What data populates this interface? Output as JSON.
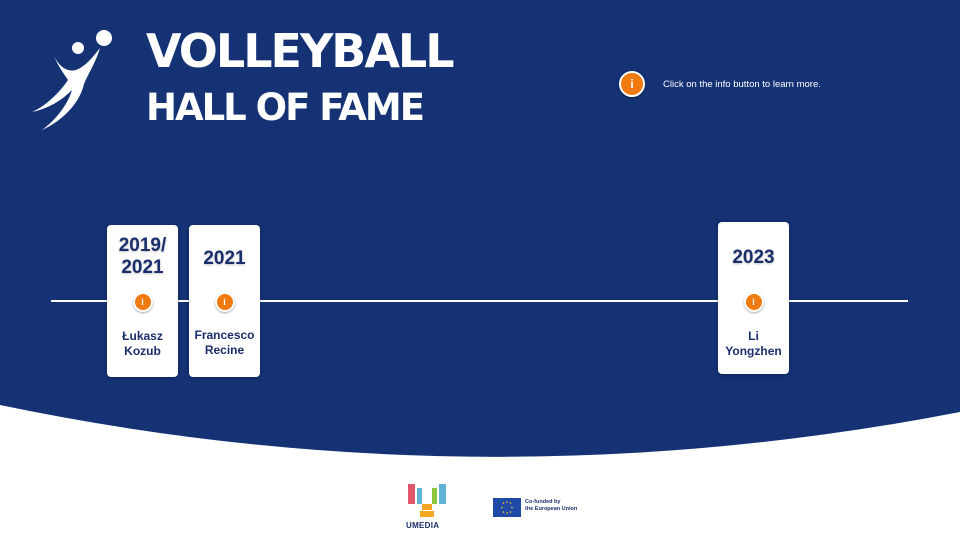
{
  "header": {
    "title_line1": "VOLLEYBALL",
    "title_line2": "HALL OF FAME",
    "logo_icon": "volleyball-player-logo"
  },
  "info_hint": {
    "button_glyph": "i",
    "text": "Click on the info button to learn more."
  },
  "timeline": {
    "cards": [
      {
        "year": "2019/\n2021",
        "name": "Łukasz\nKozub",
        "info_glyph": "i"
      },
      {
        "year": "2021",
        "name": "Francesco\nRecine",
        "info_glyph": "i"
      },
      {
        "year": "2023",
        "name": "Li\nYongzhen",
        "info_glyph": "i"
      }
    ]
  },
  "footer": {
    "umedia_label": "UMEDIA",
    "eu_label": "Co-funded by\nthe European Union"
  },
  "colors": {
    "background": "#143274",
    "accent": "#f07a10",
    "text_dark": "#1a2e6c"
  }
}
